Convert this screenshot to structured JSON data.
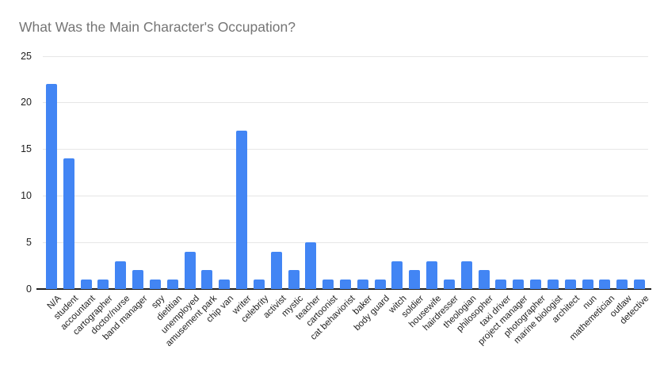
{
  "page": {
    "background": "#ffffff"
  },
  "chart_data": {
    "type": "bar",
    "title": "What Was the Main Character's Occupation?",
    "categories": [
      "N/A",
      "student",
      "accountant",
      "cartographer",
      "doctor/nurse",
      "band manager",
      "spy",
      "dietitian",
      "unemployed",
      "amusement park",
      "chip van",
      "writer",
      "celebrity",
      "activist",
      "mystic",
      "teacher",
      "cartoonist",
      "cat behaviorist",
      "baker",
      "body guard",
      "witch",
      "soldier",
      "housewife",
      "hairdresser",
      "theologian",
      "philosopher",
      "taxi driver",
      "project manager",
      "photographer",
      "marine biologist",
      "architect",
      "nun",
      "mathemetician",
      "outlaw",
      "detective"
    ],
    "values": [
      22,
      14,
      1,
      1,
      3,
      2,
      1,
      1,
      4,
      2,
      1,
      17,
      1,
      4,
      2,
      5,
      1,
      1,
      1,
      1,
      3,
      2,
      3,
      1,
      3,
      2,
      1,
      1,
      1,
      1,
      1,
      1,
      1,
      1,
      1
    ],
    "xlabel": "",
    "ylabel": "",
    "ylim": [
      0,
      25
    ],
    "yticks": [
      0,
      5,
      10,
      15,
      20,
      25
    ],
    "grid": "horizontal",
    "legend": "none",
    "colors": {
      "bar": "#4285f4",
      "title": "#757575",
      "axis_labels": "#1f1f1f",
      "gridline": "#e6e6e6",
      "baseline": "#1f1f1f"
    }
  }
}
